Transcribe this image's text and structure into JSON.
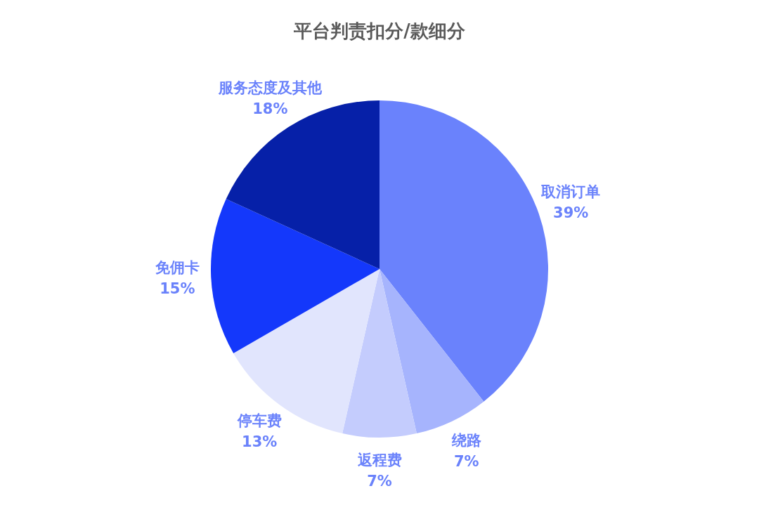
{
  "chart_data": {
    "type": "pie",
    "title": "平台判责扣分/款细分",
    "categories": [
      "取消订单",
      "绕路",
      "返程费",
      "停车费",
      "免佣卡",
      "服务态度及其他"
    ],
    "values": [
      39,
      7,
      7,
      13,
      15,
      18
    ],
    "value_labels": [
      "39%",
      "7%",
      "7%",
      "13%",
      "15%",
      "18%"
    ],
    "colors": [
      "#6a82fc",
      "#a6b4fd",
      "#c4ccfd",
      "#e1e5fd",
      "#1438fb",
      "#0620a8"
    ]
  }
}
